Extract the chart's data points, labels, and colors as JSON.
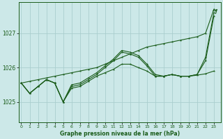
{
  "title": "Graphe pression niveau de la mer (hPa)",
  "bg_color": "#cce8e8",
  "grid_color": "#aacece",
  "line_color": "#1a5c1a",
  "x_ticks": [
    0,
    1,
    2,
    3,
    4,
    5,
    6,
    7,
    8,
    9,
    10,
    11,
    12,
    13,
    14,
    15,
    16,
    17,
    18,
    19,
    20,
    21,
    22,
    23
  ],
  "y_ticks": [
    1025,
    1026,
    1027
  ],
  "ylim": [
    1024.4,
    1027.9
  ],
  "xlim": [
    -0.3,
    23.8
  ],
  "series_wavy1": [
    1025.55,
    1025.25,
    1025.45,
    1025.65,
    1025.55,
    1025.0,
    1025.45,
    1025.5,
    1025.65,
    1025.8,
    1026.0,
    1026.2,
    1026.45,
    1026.4,
    1026.3,
    1026.05,
    1025.75,
    1025.75,
    1025.8,
    1025.75,
    1025.75,
    1025.8,
    1026.2,
    1027.5
  ],
  "series_wavy2": [
    1025.55,
    1025.25,
    1025.45,
    1025.65,
    1025.55,
    1025.0,
    1025.5,
    1025.55,
    1025.7,
    1025.85,
    1026.05,
    1026.25,
    1026.5,
    1026.45,
    1026.35,
    1026.1,
    1025.8,
    1025.75,
    1025.8,
    1025.75,
    1025.75,
    1025.8,
    1026.3,
    1027.6
  ],
  "series_straight": [
    1025.55,
    1025.6,
    1025.65,
    1025.7,
    1025.75,
    1025.8,
    1025.85,
    1025.9,
    1025.95,
    1026.0,
    1026.1,
    1026.2,
    1026.3,
    1026.4,
    1026.5,
    1026.6,
    1026.65,
    1026.7,
    1026.75,
    1026.8,
    1026.85,
    1026.9,
    1027.0,
    1027.7
  ],
  "series_flat": [
    1025.55,
    1025.25,
    1025.45,
    1025.65,
    1025.55,
    1025.0,
    1025.4,
    1025.45,
    1025.6,
    1025.75,
    1025.85,
    1025.95,
    1026.1,
    1026.1,
    1026.0,
    1025.9,
    1025.75,
    1025.75,
    1025.8,
    1025.75,
    1025.75,
    1025.78,
    1025.82,
    1025.9
  ]
}
